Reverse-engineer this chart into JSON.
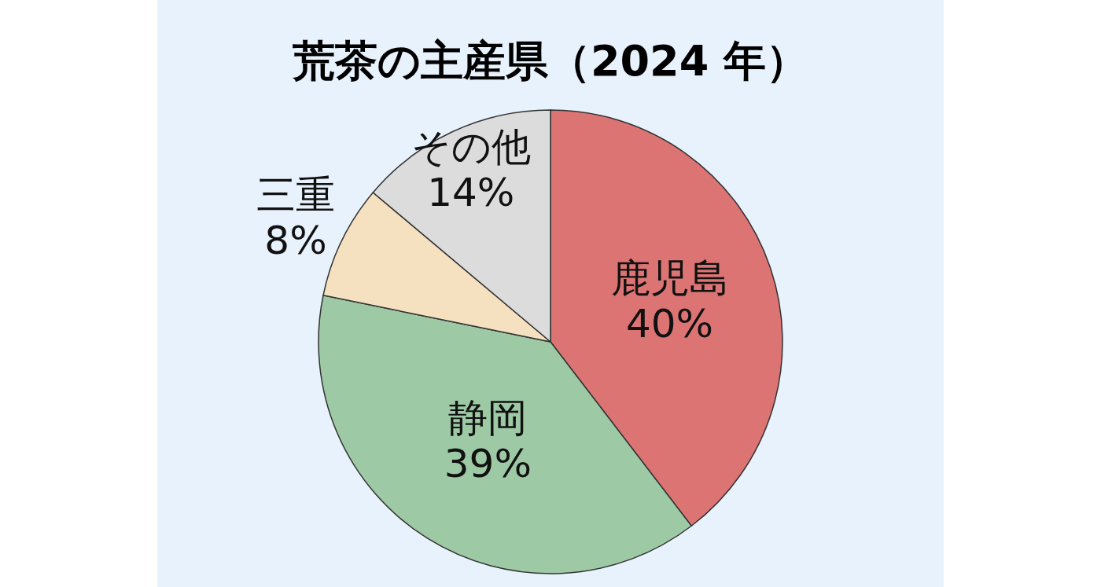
{
  "chart_data": {
    "type": "pie",
    "title": "荒茶の主産県（2024 年）",
    "categories": [
      "鹿児島",
      "静岡",
      "三重",
      "その他"
    ],
    "values": [
      40,
      39,
      8,
      14
    ],
    "value_labels": [
      "40%",
      "39%",
      "8%",
      "14%"
    ],
    "colors": [
      "#dc7474",
      "#9dc9a5",
      "#f5e0c0",
      "#dcdcdc"
    ]
  }
}
